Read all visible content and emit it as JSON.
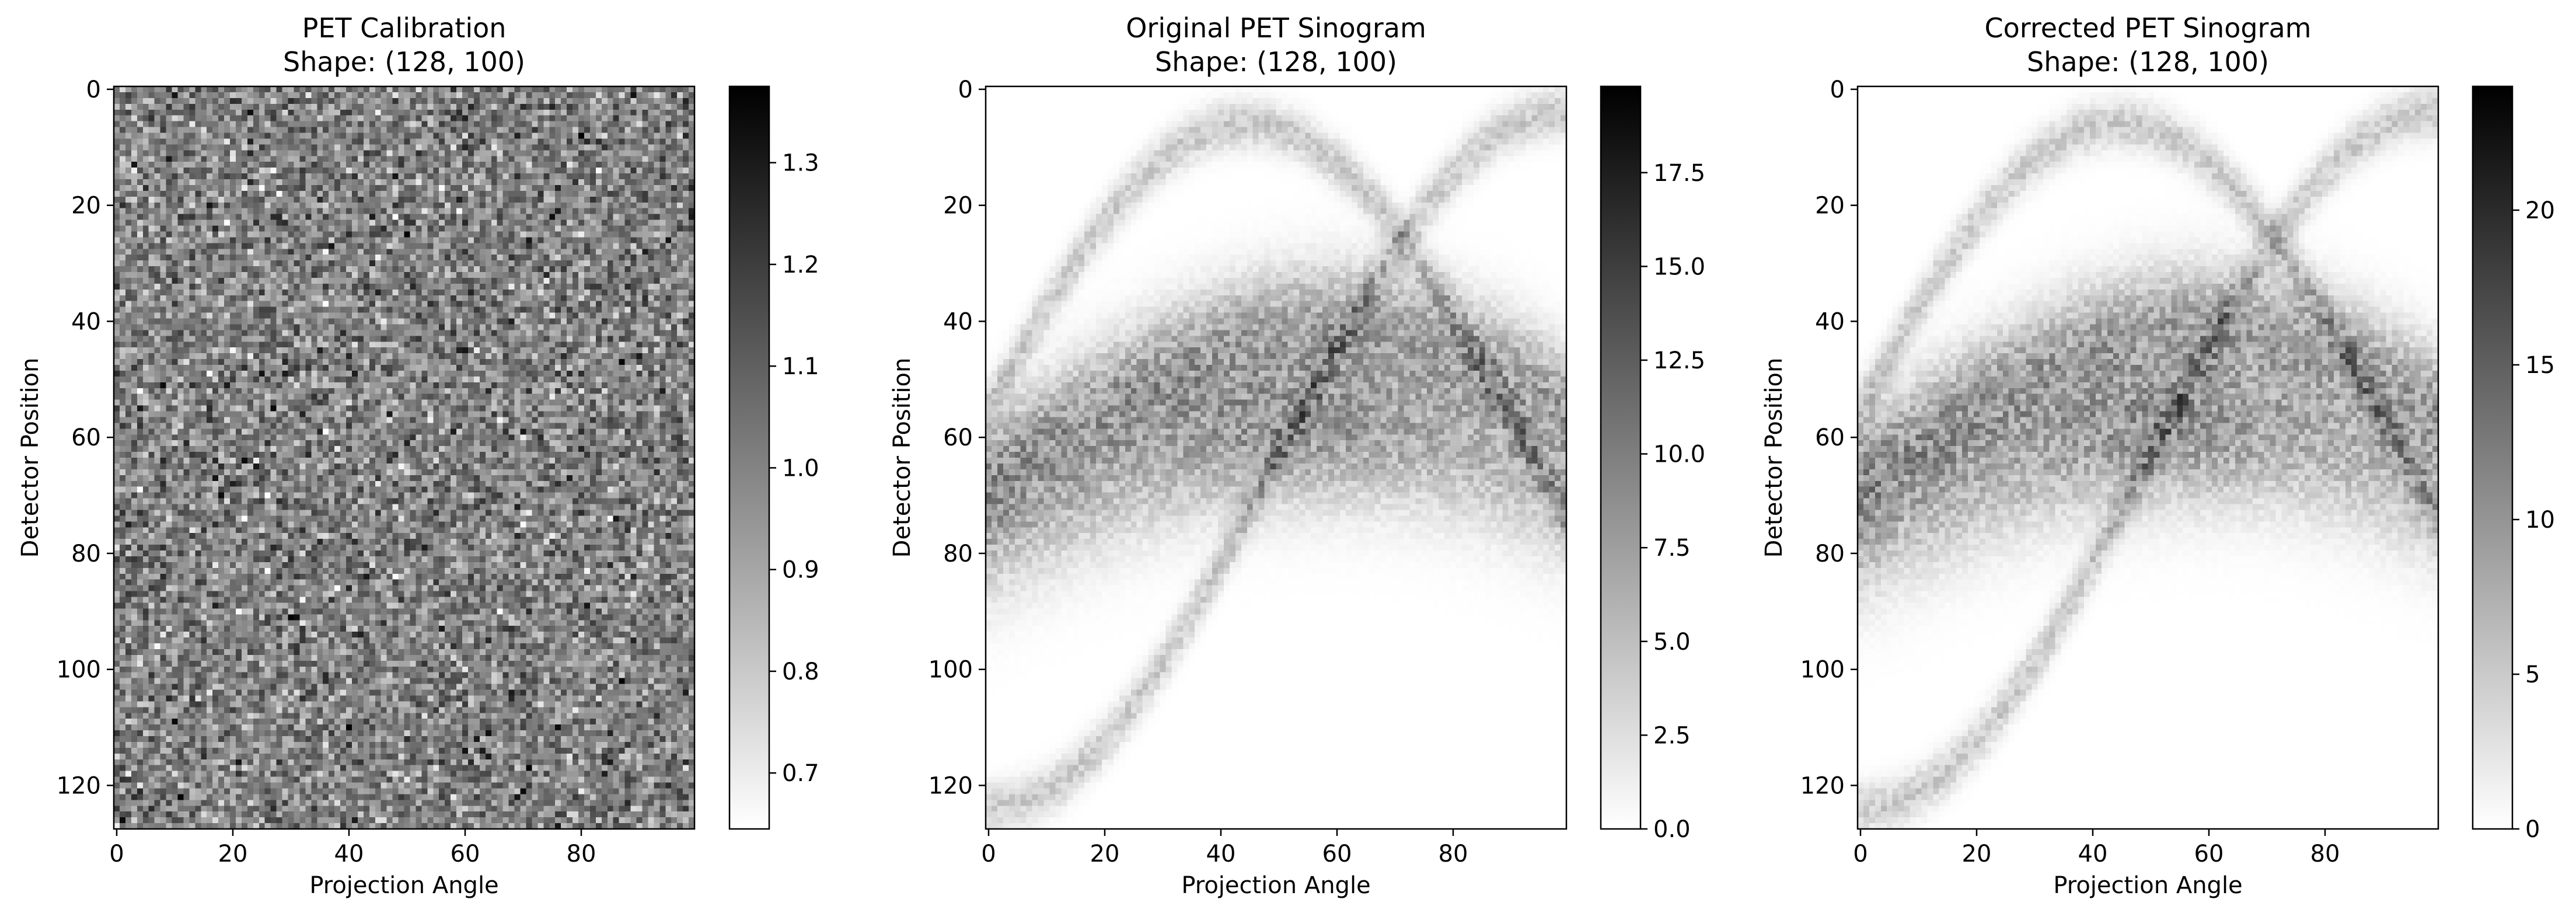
{
  "chart_data": [
    {
      "type": "heatmap",
      "title": "PET Calibration",
      "subtitle": "Shape: (128, 100)",
      "xlabel": "Projection Angle",
      "ylabel": "Detector Position",
      "shape": [
        128,
        100
      ],
      "pattern": "noise",
      "colormap": "gray_r",
      "xlim": [
        0,
        99
      ],
      "ylim": [
        127,
        0
      ],
      "xticks": [
        0,
        20,
        40,
        60,
        80
      ],
      "yticks": [
        0,
        20,
        40,
        60,
        80,
        100,
        120
      ],
      "colorbar": {
        "min": 0.645,
        "max": 1.375,
        "ticks": [
          0.7,
          0.8,
          0.9,
          1.0,
          1.1,
          1.2,
          1.3
        ],
        "tick_labels": [
          "0.7",
          "0.8",
          "0.9",
          "1.0",
          "1.1",
          "1.2",
          "1.3"
        ]
      }
    },
    {
      "type": "heatmap",
      "title": "Original PET Sinogram",
      "subtitle": "Shape: (128, 100)",
      "xlabel": "Projection Angle",
      "ylabel": "Detector Position",
      "shape": [
        128,
        100
      ],
      "pattern": "sinogram",
      "colormap": "gray_r",
      "xlim": [
        0,
        99
      ],
      "ylim": [
        127,
        0
      ],
      "xticks": [
        0,
        20,
        40,
        60,
        80
      ],
      "yticks": [
        0,
        20,
        40,
        60,
        80,
        100,
        120
      ],
      "colorbar": {
        "min": 0,
        "max": 19.8,
        "ticks": [
          0,
          2.5,
          5,
          7.5,
          10,
          12.5,
          15,
          17.5
        ],
        "tick_labels": [
          "0.0",
          "2.5",
          "5.0",
          "7.5",
          "10.0",
          "12.5",
          "15.0",
          "17.5"
        ]
      }
    },
    {
      "type": "heatmap",
      "title": "Corrected PET Sinogram",
      "subtitle": "Shape: (128, 100)",
      "xlabel": "Projection Angle",
      "ylabel": "Detector Position",
      "shape": [
        128,
        100
      ],
      "pattern": "sinogram",
      "colormap": "gray_r",
      "xlim": [
        0,
        99
      ],
      "ylim": [
        127,
        0
      ],
      "xticks": [
        0,
        20,
        40,
        60,
        80
      ],
      "yticks": [
        0,
        20,
        40,
        60,
        80,
        100,
        120
      ],
      "colorbar": {
        "min": 0,
        "max": 24,
        "ticks": [
          0,
          5,
          10,
          15,
          20
        ],
        "tick_labels": [
          "0",
          "5",
          "10",
          "15",
          "20"
        ]
      }
    }
  ]
}
